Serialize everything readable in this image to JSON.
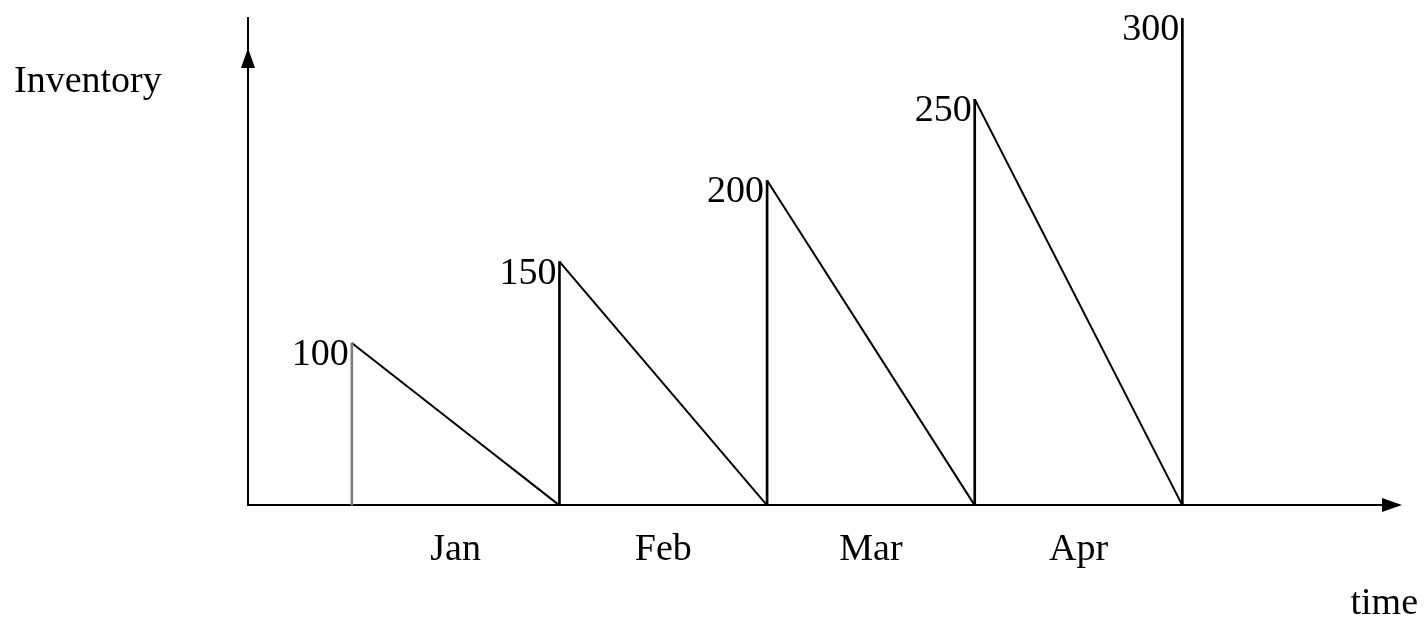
{
  "chart_data": {
    "type": "line",
    "xlabel": "time",
    "ylabel": "Inventory",
    "categories": [
      null,
      null,
      "Jan",
      null,
      "Feb",
      null,
      "Mar",
      null,
      "Apr",
      null,
      null,
      null
    ],
    "series": [
      {
        "type": "bar",
        "colors": [
          "#000000",
          "#808080",
          "#000000",
          "#000000",
          "#000000",
          "#000000",
          "#000000",
          "#000000",
          "#000000",
          "#000000",
          "#000000",
          "#000000"
        ],
        "values": [
          null,
          100,
          null,
          150,
          null,
          200,
          null,
          250,
          null,
          300,
          null,
          null
        ],
        "value_labels": [
          null,
          "100",
          null,
          "150",
          null,
          "200",
          null,
          "250",
          null,
          "300",
          null,
          null
        ]
      },
      {
        "color": "#000000",
        "values": [
          null,
          100,
          null,
          0,
          null,
          null,
          null,
          null,
          null,
          null,
          null,
          null
        ]
      },
      {
        "color": "#000000",
        "values": [
          null,
          null,
          null,
          150,
          null,
          0,
          null,
          null,
          null,
          null,
          null,
          null
        ]
      },
      {
        "color": "#000000",
        "values": [
          null,
          null,
          null,
          null,
          null,
          200,
          null,
          0,
          null,
          null,
          null,
          null
        ]
      },
      {
        "color": "#000000",
        "values": [
          null,
          null,
          null,
          null,
          null,
          null,
          null,
          250,
          null,
          0,
          null,
          null
        ]
      }
    ],
    "tick_labels": "x",
    "grid": false,
    "legend": false,
    "marker": "none",
    "line_style": "solid"
  }
}
